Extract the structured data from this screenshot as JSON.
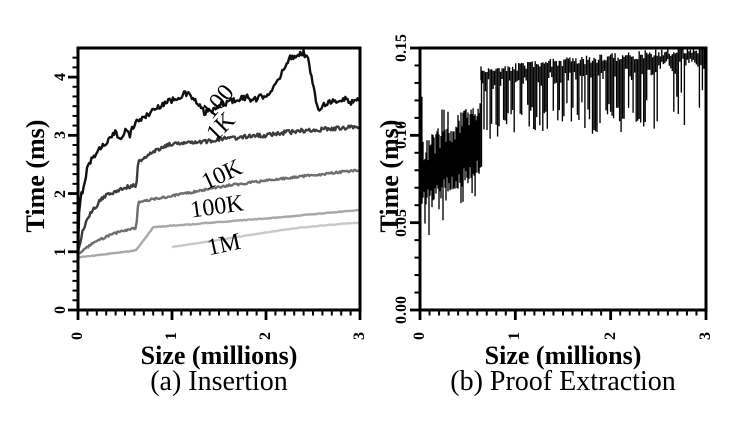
{
  "figure": {
    "background": "#ffffff",
    "axis_color": "#000000"
  },
  "chart_data": [
    {
      "type": "line",
      "title": "(a) Insertion",
      "xlabel": "Size (millions)",
      "ylabel": "Time (ms)",
      "xlim": [
        0,
        3
      ],
      "ylim": [
        0,
        4.5
      ],
      "grid": false,
      "tick_label_rotation": -90,
      "xticks": {
        "values": [
          0,
          1,
          2,
          3
        ],
        "labels": [
          "0",
          "1",
          "2",
          "3"
        ],
        "minor_step": 0.1
      },
      "yticks": {
        "values": [
          0,
          1,
          2,
          3,
          4
        ],
        "labels": [
          "0",
          "1",
          "2",
          "3",
          "4"
        ],
        "minor_step": 0.1667
      },
      "series": [
        {
          "name": "100",
          "color": "#101010",
          "noise": 0.05,
          "label": {
            "text": "100",
            "x": 1.49,
            "y": 3.58,
            "rotation": -50
          },
          "points": [
            [
              0,
              0.9
            ],
            [
              0.01,
              1.6
            ],
            [
              0.03,
              1.95
            ],
            [
              0.06,
              2.12
            ],
            [
              0.1,
              2.45
            ],
            [
              0.15,
              2.6
            ],
            [
              0.2,
              2.72
            ],
            [
              0.25,
              2.8
            ],
            [
              0.3,
              2.88
            ],
            [
              0.35,
              2.95
            ],
            [
              0.4,
              3.05
            ],
            [
              0.45,
              2.93
            ],
            [
              0.5,
              3.1
            ],
            [
              0.55,
              3.0
            ],
            [
              0.6,
              3.2
            ],
            [
              0.65,
              3.27
            ],
            [
              0.7,
              3.3
            ],
            [
              0.75,
              3.37
            ],
            [
              0.8,
              3.43
            ],
            [
              0.85,
              3.48
            ],
            [
              0.9,
              3.54
            ],
            [
              0.95,
              3.58
            ],
            [
              1.0,
              3.6
            ],
            [
              1.05,
              3.65
            ],
            [
              1.1,
              3.68
            ],
            [
              1.15,
              3.72
            ],
            [
              1.2,
              3.68
            ],
            [
              1.25,
              3.58
            ],
            [
              1.3,
              3.48
            ],
            [
              1.35,
              3.38
            ],
            [
              1.4,
              3.44
            ],
            [
              1.45,
              3.42
            ],
            [
              1.5,
              3.5
            ],
            [
              1.55,
              3.55
            ],
            [
              1.6,
              3.57
            ],
            [
              1.65,
              3.6
            ],
            [
              1.7,
              3.62
            ],
            [
              1.75,
              3.64
            ],
            [
              1.8,
              3.66
            ],
            [
              1.85,
              3.6
            ],
            [
              1.9,
              3.62
            ],
            [
              1.95,
              3.66
            ],
            [
              2.0,
              3.7
            ],
            [
              2.05,
              3.76
            ],
            [
              2.1,
              3.85
            ],
            [
              2.15,
              4.0
            ],
            [
              2.2,
              4.2
            ],
            [
              2.25,
              4.32
            ],
            [
              2.3,
              4.36
            ],
            [
              2.35,
              4.4
            ],
            [
              2.4,
              4.42
            ],
            [
              2.45,
              4.3
            ],
            [
              2.5,
              3.85
            ],
            [
              2.55,
              3.45
            ],
            [
              2.6,
              3.52
            ],
            [
              2.65,
              3.56
            ],
            [
              2.7,
              3.6
            ],
            [
              2.75,
              3.55
            ],
            [
              2.8,
              3.6
            ],
            [
              2.85,
              3.63
            ],
            [
              2.9,
              3.57
            ],
            [
              2.95,
              3.6
            ],
            [
              3.0,
              3.62
            ]
          ]
        },
        {
          "name": "1K",
          "color": "#3c3c3c",
          "noise": 0.035,
          "label": {
            "text": "1K",
            "x": 1.52,
            "y": 3.14,
            "rotation": -45
          },
          "points": [
            [
              0,
              0.95
            ],
            [
              0.02,
              1.15
            ],
            [
              0.05,
              1.35
            ],
            [
              0.1,
              1.55
            ],
            [
              0.15,
              1.7
            ],
            [
              0.2,
              1.8
            ],
            [
              0.25,
              1.9
            ],
            [
              0.3,
              1.97
            ],
            [
              0.35,
              2.0
            ],
            [
              0.4,
              2.05
            ],
            [
              0.45,
              2.08
            ],
            [
              0.5,
              2.1
            ],
            [
              0.55,
              2.12
            ],
            [
              0.62,
              2.15
            ],
            [
              0.64,
              2.55
            ],
            [
              0.7,
              2.6
            ],
            [
              0.75,
              2.65
            ],
            [
              0.8,
              2.72
            ],
            [
              0.85,
              2.76
            ],
            [
              0.9,
              2.8
            ],
            [
              0.95,
              2.83
            ],
            [
              1.0,
              2.85
            ],
            [
              1.1,
              2.88
            ],
            [
              1.2,
              2.9
            ],
            [
              1.3,
              2.88
            ],
            [
              1.4,
              2.9
            ],
            [
              1.5,
              2.93
            ],
            [
              1.6,
              2.95
            ],
            [
              1.7,
              2.96
            ],
            [
              1.8,
              2.98
            ],
            [
              1.9,
              3.0
            ],
            [
              2.0,
              3.0
            ],
            [
              2.1,
              3.02
            ],
            [
              2.2,
              3.05
            ],
            [
              2.3,
              3.06
            ],
            [
              2.4,
              3.08
            ],
            [
              2.5,
              3.09
            ],
            [
              2.6,
              3.1
            ],
            [
              2.7,
              3.12
            ],
            [
              2.8,
              3.12
            ],
            [
              2.9,
              3.14
            ],
            [
              3.0,
              3.15
            ]
          ]
        },
        {
          "name": "10K",
          "color": "#6e6e6e",
          "noise": 0.018,
          "label": {
            "text": "10K",
            "x": 1.53,
            "y": 2.32,
            "rotation": -25
          },
          "points": [
            [
              0,
              0.95
            ],
            [
              0.05,
              1.02
            ],
            [
              0.1,
              1.08
            ],
            [
              0.2,
              1.18
            ],
            [
              0.3,
              1.26
            ],
            [
              0.4,
              1.32
            ],
            [
              0.5,
              1.37
            ],
            [
              0.6,
              1.4
            ],
            [
              0.62,
              1.41
            ],
            [
              0.64,
              1.85
            ],
            [
              0.7,
              1.88
            ],
            [
              0.8,
              1.9
            ],
            [
              0.9,
              1.93
            ],
            [
              1.0,
              1.96
            ],
            [
              1.2,
              2.02
            ],
            [
              1.4,
              2.08
            ],
            [
              1.6,
              2.14
            ],
            [
              1.8,
              2.18
            ],
            [
              2.0,
              2.22
            ],
            [
              2.2,
              2.26
            ],
            [
              2.4,
              2.3
            ],
            [
              2.6,
              2.33
            ],
            [
              2.8,
              2.37
            ],
            [
              3.0,
              2.4
            ]
          ]
        },
        {
          "name": "100K",
          "color": "#a8a8a8",
          "noise": 0.006,
          "label": {
            "text": "100K",
            "x": 1.48,
            "y": 1.77,
            "rotation": -8
          },
          "points": [
            [
              0,
              0.9
            ],
            [
              0.2,
              0.94
            ],
            [
              0.4,
              0.98
            ],
            [
              0.6,
              1.02
            ],
            [
              0.62,
              1.03
            ],
            [
              0.8,
              1.42
            ],
            [
              1.0,
              1.45
            ],
            [
              1.2,
              1.47
            ],
            [
              1.4,
              1.5
            ],
            [
              1.6,
              1.52
            ],
            [
              1.8,
              1.55
            ],
            [
              2.0,
              1.57
            ],
            [
              2.2,
              1.6
            ],
            [
              2.4,
              1.63
            ],
            [
              2.6,
              1.66
            ],
            [
              2.8,
              1.69
            ],
            [
              3.0,
              1.72
            ]
          ]
        },
        {
          "name": "1M",
          "color": "#c9c9c9",
          "noise": 0.005,
          "label": {
            "text": "1M",
            "x": 1.55,
            "y": 1.12,
            "rotation": -12
          },
          "points": [
            [
              1.0,
              1.08
            ],
            [
              1.2,
              1.13
            ],
            [
              1.4,
              1.18
            ],
            [
              1.6,
              1.23
            ],
            [
              1.8,
              1.28
            ],
            [
              2.0,
              1.33
            ],
            [
              2.2,
              1.38
            ],
            [
              2.4,
              1.42
            ],
            [
              2.6,
              1.45
            ],
            [
              2.8,
              1.48
            ],
            [
              3.0,
              1.5
            ]
          ]
        }
      ]
    },
    {
      "type": "line",
      "title": "(b) Proof Extraction",
      "xlabel": "Size (millions)",
      "ylabel": "Time (ms)",
      "xlim": [
        0,
        3
      ],
      "ylim": [
        0,
        0.15
      ],
      "grid": false,
      "tick_label_rotation": -90,
      "xticks": {
        "values": [
          0,
          1,
          2,
          3
        ],
        "labels": [
          "0",
          "1",
          "2",
          "3"
        ],
        "minor_step": 0.1
      },
      "yticks": {
        "values": [
          0,
          0.05,
          0.1,
          0.15
        ],
        "labels": [
          "0.00",
          "0.05",
          "0.10",
          "0.15"
        ],
        "minor_step": 0.01
      },
      "signal": {
        "name": "proof-extraction-time",
        "color": "#000000",
        "phase1": {
          "x_range": [
            0,
            0.64
          ],
          "lower_env": [
            [
              0,
              0.062
            ],
            [
              0.3,
              0.072
            ],
            [
              0.64,
              0.082
            ]
          ],
          "upper_env": [
            [
              0,
              0.088
            ],
            [
              0.2,
              0.097
            ],
            [
              0.3,
              0.101
            ],
            [
              0.64,
              0.115
            ]
          ]
        },
        "phase2": {
          "x_range": [
            0.64,
            3.0
          ],
          "upper_env": [
            [
              0.64,
              0.137
            ],
            [
              1.0,
              0.139
            ],
            [
              1.5,
              0.142
            ],
            [
              2.0,
              0.1445
            ],
            [
              2.5,
              0.147
            ],
            [
              3.0,
              0.15
            ]
          ],
          "spike_floor": 0.098,
          "quiet_gaps": [
            [
              2.5,
              2.64
            ],
            [
              2.78,
              2.92
            ]
          ]
        },
        "extra_spikes": [
          [
            0.02,
            0.065,
            0.122
          ]
        ]
      }
    }
  ]
}
